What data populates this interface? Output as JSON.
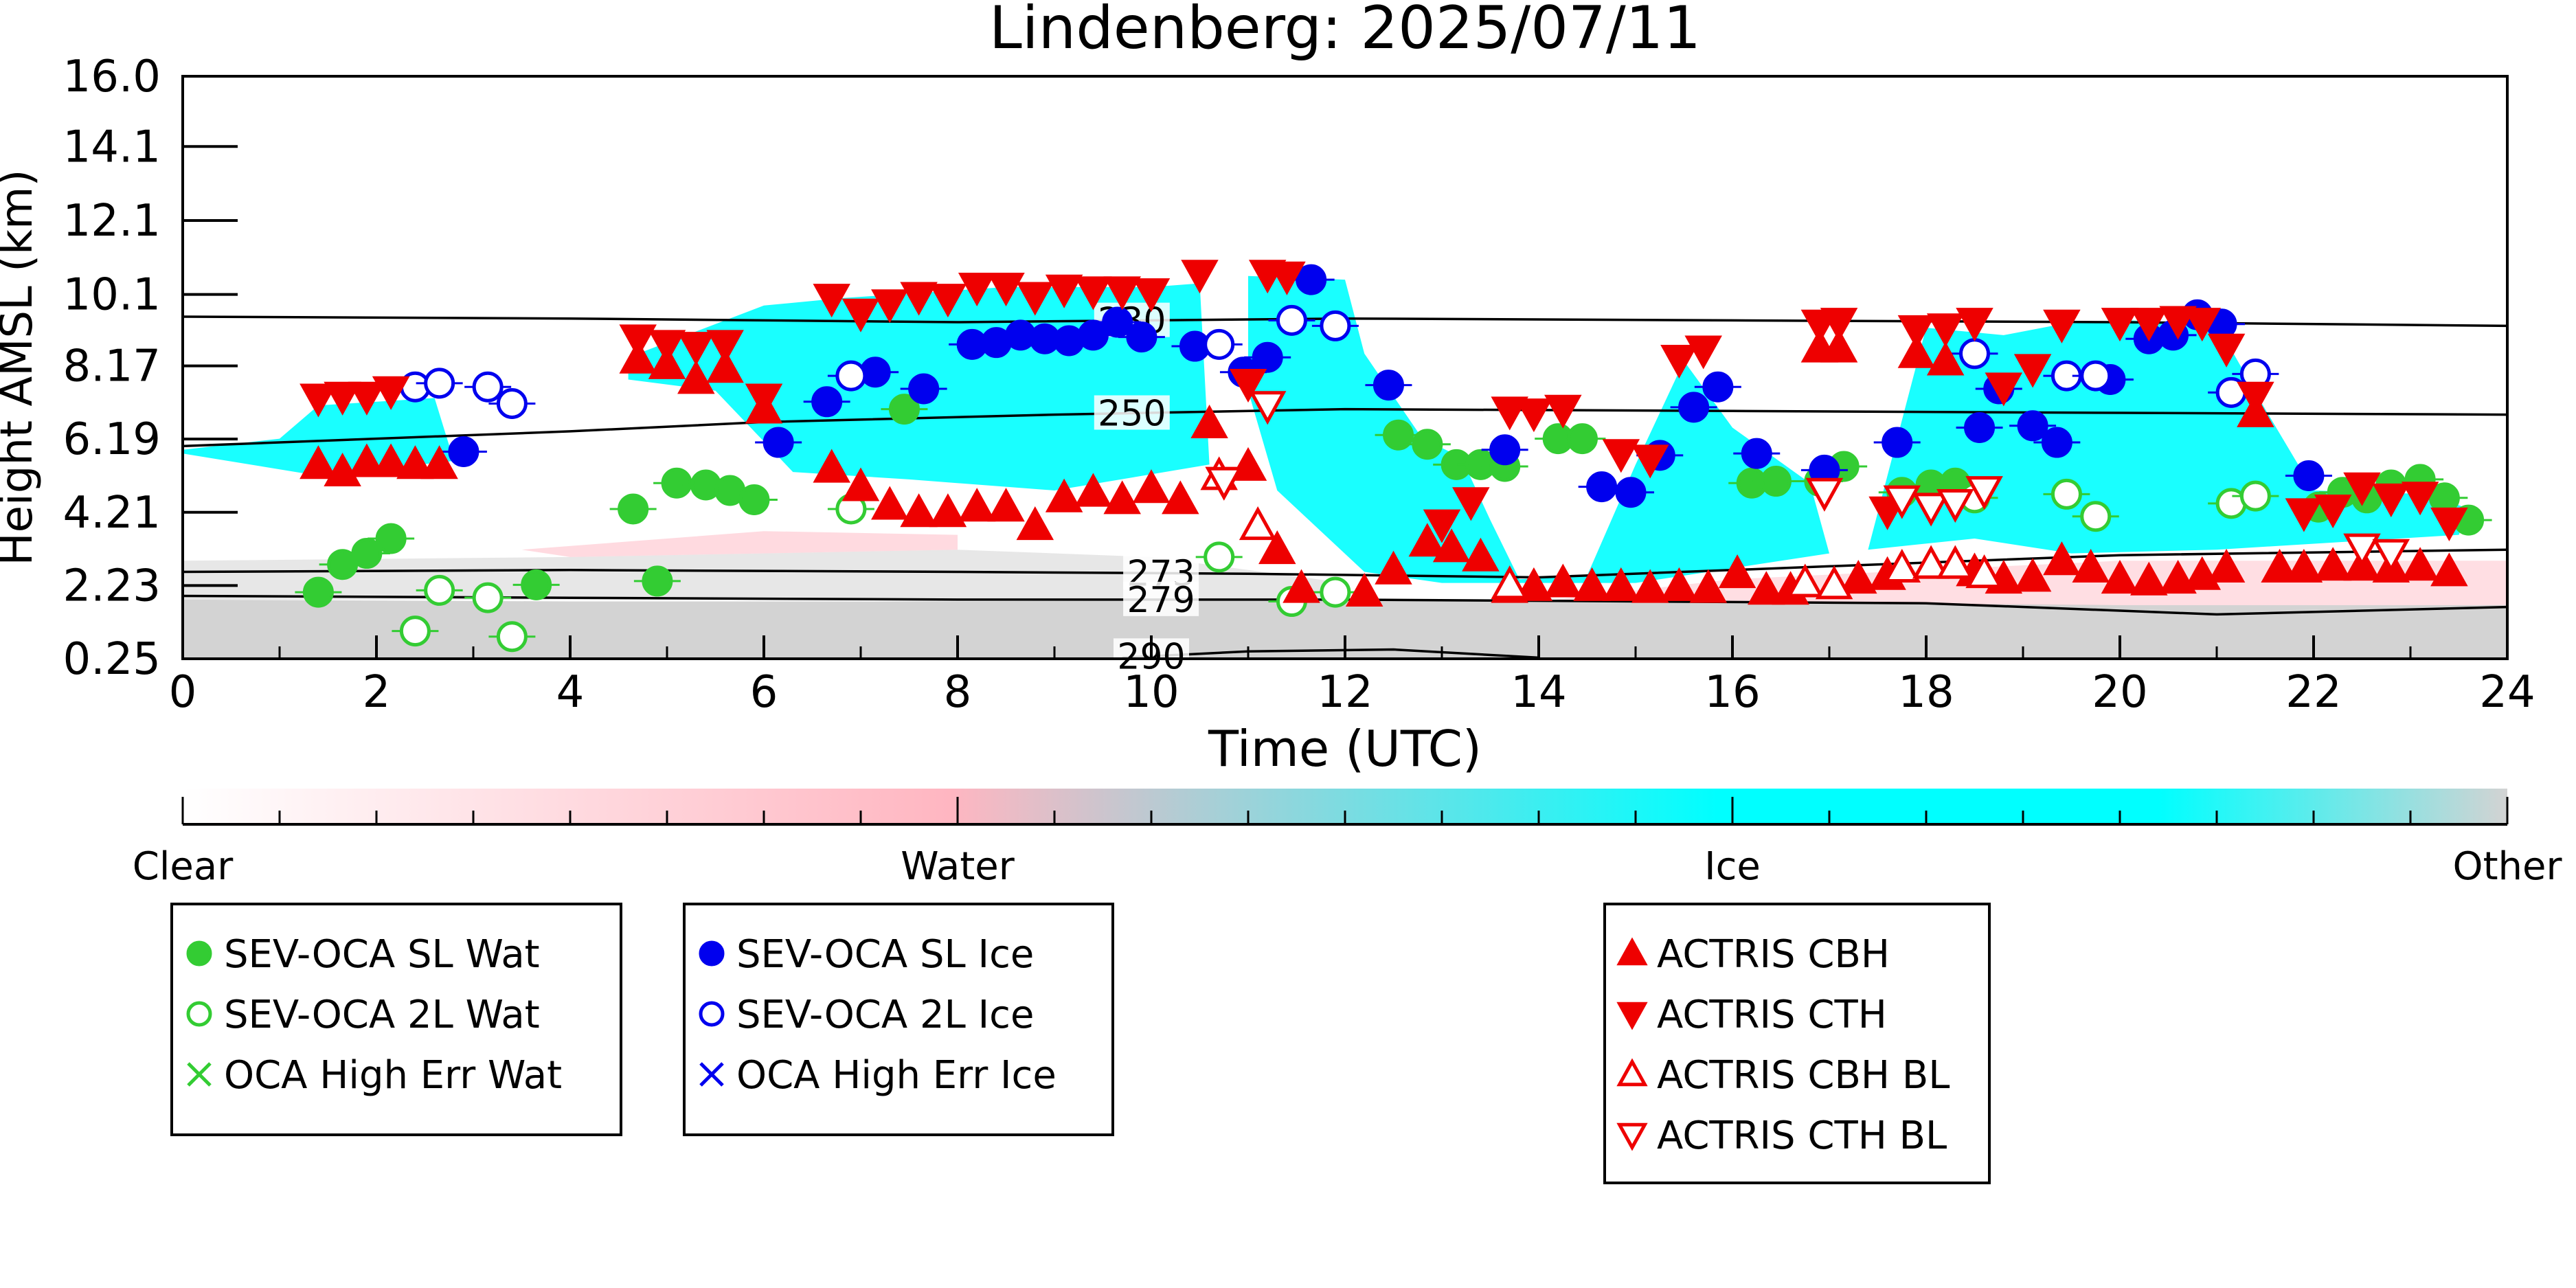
{
  "chart_data": {
    "type": "scatter",
    "title": "Lindenberg: 2025/07/11",
    "xlabel": "Time (UTC)",
    "ylabel": "Height AMSL (km)",
    "xlim": [
      0,
      24
    ],
    "ylim": [
      0.25,
      16.0
    ],
    "x_ticks": [
      "0",
      "2",
      "4",
      "6",
      "8",
      "10",
      "12",
      "14",
      "16",
      "18",
      "20",
      "22",
      "24"
    ],
    "y_ticks": [
      "0.25",
      "2.23",
      "4.21",
      "6.19",
      "8.17",
      "10.1",
      "12.1",
      "14.1",
      "16.0"
    ],
    "colorbar": {
      "labels": [
        "Clear",
        "Water",
        "Ice",
        "Other"
      ],
      "colors": [
        "#ffffff",
        "#ffb6c1",
        "#00ffff",
        "#d3d3d3"
      ]
    },
    "isotherms": [
      {
        "label": "230",
        "points": [
          [
            0,
            9.5
          ],
          [
            4,
            9.45
          ],
          [
            8,
            9.35
          ],
          [
            12,
            9.45
          ],
          [
            16,
            9.4
          ],
          [
            20,
            9.35
          ],
          [
            24,
            9.25
          ]
        ]
      },
      {
        "label": "250",
        "points": [
          [
            0,
            6.0
          ],
          [
            4,
            6.4
          ],
          [
            6,
            6.65
          ],
          [
            9,
            6.85
          ],
          [
            12,
            7.0
          ],
          [
            16,
            6.95
          ],
          [
            20,
            6.9
          ],
          [
            24,
            6.85
          ]
        ]
      },
      {
        "label": "273",
        "points": [
          [
            0,
            2.6
          ],
          [
            4,
            2.65
          ],
          [
            8,
            2.6
          ],
          [
            11,
            2.55
          ],
          [
            14,
            2.45
          ],
          [
            18,
            2.85
          ],
          [
            20,
            3.05
          ],
          [
            24,
            3.2
          ]
        ]
      },
      {
        "label": "279",
        "points": [
          [
            0,
            1.95
          ],
          [
            4,
            1.9
          ],
          [
            8,
            1.85
          ],
          [
            12,
            1.85
          ],
          [
            15,
            1.8
          ],
          [
            18,
            1.75
          ],
          [
            21,
            1.45
          ],
          [
            24,
            1.65
          ]
        ]
      },
      {
        "label": "290",
        "points": [
          [
            9.7,
            0.28
          ],
          [
            11,
            0.45
          ],
          [
            12.5,
            0.5
          ],
          [
            14,
            0.28
          ]
        ]
      }
    ],
    "series": [
      {
        "name": "SEV-OCA SL Wat",
        "marker": "circle-filled",
        "color": "#33cc33",
        "points": [
          [
            1.4,
            2.05
          ],
          [
            1.65,
            2.8
          ],
          [
            1.9,
            3.1
          ],
          [
            2.15,
            3.5
          ],
          [
            3.65,
            2.25
          ],
          [
            4.65,
            4.3
          ],
          [
            4.9,
            2.35
          ],
          [
            5.1,
            5.0
          ],
          [
            5.4,
            4.95
          ],
          [
            5.65,
            4.8
          ],
          [
            5.9,
            4.55
          ],
          [
            7.45,
            7.0
          ],
          [
            12.55,
            6.3
          ],
          [
            12.85,
            6.05
          ],
          [
            13.15,
            5.5
          ],
          [
            13.4,
            5.5
          ],
          [
            13.65,
            5.45
          ],
          [
            14.2,
            6.2
          ],
          [
            14.45,
            6.2
          ],
          [
            16.2,
            5.0
          ],
          [
            16.45,
            5.05
          ],
          [
            16.9,
            5.05
          ],
          [
            17.15,
            5.45
          ],
          [
            17.75,
            4.75
          ],
          [
            18.05,
            4.95
          ],
          [
            18.3,
            5.0
          ],
          [
            22.05,
            4.35
          ],
          [
            22.3,
            4.75
          ],
          [
            22.55,
            4.6
          ],
          [
            22.8,
            4.95
          ],
          [
            23.1,
            5.1
          ],
          [
            23.35,
            4.6
          ],
          [
            23.6,
            4.0
          ]
        ]
      },
      {
        "name": "SEV-OCA 2L Wat",
        "marker": "circle-open",
        "color": "#33cc33",
        "points": [
          [
            2.4,
            1.0
          ],
          [
            2.65,
            2.1
          ],
          [
            3.15,
            1.9
          ],
          [
            3.4,
            0.85
          ],
          [
            6.9,
            4.3
          ],
          [
            10.7,
            3.0
          ],
          [
            11.45,
            1.8
          ],
          [
            11.9,
            2.05
          ],
          [
            18.5,
            4.6
          ],
          [
            19.45,
            4.7
          ],
          [
            19.75,
            4.1
          ],
          [
            21.15,
            4.45
          ],
          [
            21.4,
            4.65
          ]
        ]
      },
      {
        "name": "OCA High Err Wat",
        "marker": "x",
        "color": "#33cc33",
        "points": []
      },
      {
        "name": "SEV-OCA SL Ice",
        "marker": "circle-filled",
        "color": "#0000ee",
        "points": [
          [
            2.9,
            5.85
          ],
          [
            6.15,
            6.1
          ],
          [
            6.65,
            7.2
          ],
          [
            7.15,
            8.0
          ],
          [
            7.65,
            7.55
          ],
          [
            8.15,
            8.75
          ],
          [
            8.4,
            8.8
          ],
          [
            8.65,
            9.0
          ],
          [
            8.9,
            8.9
          ],
          [
            9.15,
            8.85
          ],
          [
            9.4,
            9.0
          ],
          [
            9.65,
            9.35
          ],
          [
            9.9,
            8.95
          ],
          [
            10.45,
            8.7
          ],
          [
            10.95,
            8.0
          ],
          [
            11.2,
            8.4
          ],
          [
            11.65,
            10.5
          ],
          [
            12.45,
            7.65
          ],
          [
            13.65,
            5.9
          ],
          [
            14.65,
            4.9
          ],
          [
            14.95,
            4.75
          ],
          [
            15.25,
            5.75
          ],
          [
            15.6,
            7.05
          ],
          [
            15.85,
            7.6
          ],
          [
            16.25,
            5.8
          ],
          [
            16.95,
            5.35
          ],
          [
            17.7,
            6.1
          ],
          [
            18.55,
            6.5
          ],
          [
            18.75,
            7.55
          ],
          [
            19.1,
            6.55
          ],
          [
            19.35,
            6.1
          ],
          [
            19.9,
            7.8
          ],
          [
            20.3,
            8.9
          ],
          [
            20.55,
            9.0
          ],
          [
            20.8,
            9.55
          ],
          [
            21.05,
            9.3
          ],
          [
            21.95,
            5.2
          ]
        ]
      },
      {
        "name": "SEV-OCA 2L Ice",
        "marker": "circle-open",
        "color": "#0000ee",
        "points": [
          [
            2.4,
            7.6
          ],
          [
            2.65,
            7.7
          ],
          [
            3.15,
            7.6
          ],
          [
            3.4,
            7.15
          ],
          [
            6.9,
            7.9
          ],
          [
            10.7,
            8.75
          ],
          [
            11.45,
            9.4
          ],
          [
            11.9,
            9.25
          ],
          [
            18.5,
            8.5
          ],
          [
            19.45,
            7.9
          ],
          [
            19.75,
            7.9
          ],
          [
            21.15,
            7.45
          ],
          [
            21.4,
            7.95
          ]
        ]
      },
      {
        "name": "OCA High Err Ice",
        "marker": "x",
        "color": "#0000ee",
        "points": []
      },
      {
        "name": "ACTRIS CBH",
        "marker": "triangle-up-filled",
        "color": "#ee0000",
        "points": [
          [
            1.4,
            5.5
          ],
          [
            1.65,
            5.3
          ],
          [
            1.9,
            5.55
          ],
          [
            2.15,
            5.55
          ],
          [
            2.4,
            5.5
          ],
          [
            2.65,
            5.5
          ],
          [
            4.7,
            8.35
          ],
          [
            5.0,
            8.2
          ],
          [
            5.3,
            7.8
          ],
          [
            5.6,
            8.1
          ],
          [
            6.0,
            7.0
          ],
          [
            6.7,
            5.4
          ],
          [
            7.0,
            4.9
          ],
          [
            7.3,
            4.4
          ],
          [
            7.6,
            4.2
          ],
          [
            7.9,
            4.2
          ],
          [
            8.2,
            4.35
          ],
          [
            8.5,
            4.35
          ],
          [
            8.8,
            3.85
          ],
          [
            9.1,
            4.6
          ],
          [
            9.4,
            4.75
          ],
          [
            9.7,
            4.55
          ],
          [
            10.0,
            4.85
          ],
          [
            10.3,
            4.55
          ],
          [
            10.6,
            6.6
          ],
          [
            11.0,
            5.45
          ],
          [
            11.3,
            3.2
          ],
          [
            11.55,
            2.15
          ],
          [
            12.2,
            2.05
          ],
          [
            12.5,
            2.65
          ],
          [
            12.85,
            3.4
          ],
          [
            13.1,
            3.25
          ],
          [
            13.4,
            3.0
          ],
          [
            13.7,
            2.15
          ],
          [
            13.95,
            2.2
          ],
          [
            14.25,
            2.3
          ],
          [
            14.55,
            2.2
          ],
          [
            14.85,
            2.2
          ],
          [
            15.15,
            2.15
          ],
          [
            15.45,
            2.2
          ],
          [
            15.75,
            2.15
          ],
          [
            16.05,
            2.55
          ],
          [
            16.35,
            2.1
          ],
          [
            16.6,
            2.1
          ],
          [
            16.9,
            8.65
          ],
          [
            17.1,
            8.65
          ],
          [
            17.3,
            2.4
          ],
          [
            17.6,
            2.5
          ],
          [
            17.9,
            8.5
          ],
          [
            18.2,
            8.3
          ],
          [
            18.5,
            2.6
          ],
          [
            18.8,
            2.4
          ],
          [
            19.1,
            2.45
          ],
          [
            19.4,
            2.9
          ],
          [
            19.7,
            2.7
          ],
          [
            20.0,
            2.4
          ],
          [
            20.3,
            2.35
          ],
          [
            20.6,
            2.4
          ],
          [
            20.85,
            2.5
          ],
          [
            21.1,
            2.7
          ],
          [
            21.4,
            6.9
          ],
          [
            21.65,
            2.7
          ],
          [
            21.9,
            2.7
          ],
          [
            22.2,
            2.75
          ],
          [
            22.5,
            2.75
          ],
          [
            22.8,
            2.7
          ],
          [
            23.1,
            2.75
          ],
          [
            23.4,
            2.6
          ]
        ]
      },
      {
        "name": "ACTRIS CTH",
        "marker": "triangle-down-filled",
        "color": "#ee0000",
        "points": [
          [
            1.4,
            7.3
          ],
          [
            1.65,
            7.35
          ],
          [
            1.9,
            7.35
          ],
          [
            2.15,
            7.5
          ],
          [
            4.7,
            8.9
          ],
          [
            5.0,
            8.75
          ],
          [
            5.3,
            8.7
          ],
          [
            5.6,
            8.75
          ],
          [
            6.0,
            7.3
          ],
          [
            6.7,
            10.0
          ],
          [
            7.0,
            9.6
          ],
          [
            7.3,
            9.85
          ],
          [
            7.6,
            10.05
          ],
          [
            7.9,
            10.0
          ],
          [
            8.2,
            10.3
          ],
          [
            8.5,
            10.3
          ],
          [
            8.8,
            10.05
          ],
          [
            9.1,
            10.25
          ],
          [
            9.4,
            10.2
          ],
          [
            9.7,
            10.2
          ],
          [
            10.0,
            10.15
          ],
          [
            10.5,
            10.65
          ],
          [
            10.75,
            5.05
          ],
          [
            11.0,
            7.7
          ],
          [
            11.2,
            10.65
          ],
          [
            11.4,
            10.6
          ],
          [
            13.0,
            3.9
          ],
          [
            13.3,
            4.5
          ],
          [
            13.7,
            6.95
          ],
          [
            13.95,
            6.9
          ],
          [
            14.25,
            7.0
          ],
          [
            14.85,
            5.8
          ],
          [
            15.15,
            5.65
          ],
          [
            15.45,
            8.35
          ],
          [
            15.7,
            8.6
          ],
          [
            16.9,
            9.3
          ],
          [
            17.1,
            9.35
          ],
          [
            17.6,
            4.25
          ],
          [
            17.9,
            9.15
          ],
          [
            18.2,
            9.2
          ],
          [
            18.5,
            9.35
          ],
          [
            18.8,
            7.6
          ],
          [
            19.1,
            8.1
          ],
          [
            19.4,
            9.3
          ],
          [
            20.0,
            9.35
          ],
          [
            20.3,
            9.35
          ],
          [
            20.6,
            9.4
          ],
          [
            20.85,
            9.35
          ],
          [
            21.1,
            8.65
          ],
          [
            21.4,
            7.35
          ],
          [
            21.9,
            4.2
          ],
          [
            22.2,
            4.3
          ],
          [
            22.5,
            4.9
          ],
          [
            22.8,
            4.6
          ],
          [
            23.1,
            4.65
          ],
          [
            23.4,
            3.95
          ]
        ]
      },
      {
        "name": "ACTRIS CBH BL",
        "marker": "triangle-up-open",
        "color": "#ee0000",
        "points": [
          [
            10.7,
            5.2
          ],
          [
            11.1,
            3.85
          ],
          [
            13.7,
            2.25
          ],
          [
            16.75,
            2.3
          ],
          [
            17.05,
            2.25
          ],
          [
            17.75,
            2.7
          ],
          [
            18.05,
            2.8
          ],
          [
            18.3,
            2.8
          ],
          [
            18.6,
            2.55
          ]
        ]
      },
      {
        "name": "ACTRIS CTH BL",
        "marker": "triangle-down-open",
        "color": "#ee0000",
        "points": [
          [
            10.75,
            5.05
          ],
          [
            11.2,
            7.1
          ],
          [
            16.95,
            4.75
          ],
          [
            17.75,
            4.55
          ],
          [
            18.05,
            4.35
          ],
          [
            18.3,
            4.45
          ],
          [
            18.6,
            4.8
          ],
          [
            22.5,
            3.25
          ],
          [
            22.8,
            3.1
          ]
        ]
      }
    ]
  }
}
